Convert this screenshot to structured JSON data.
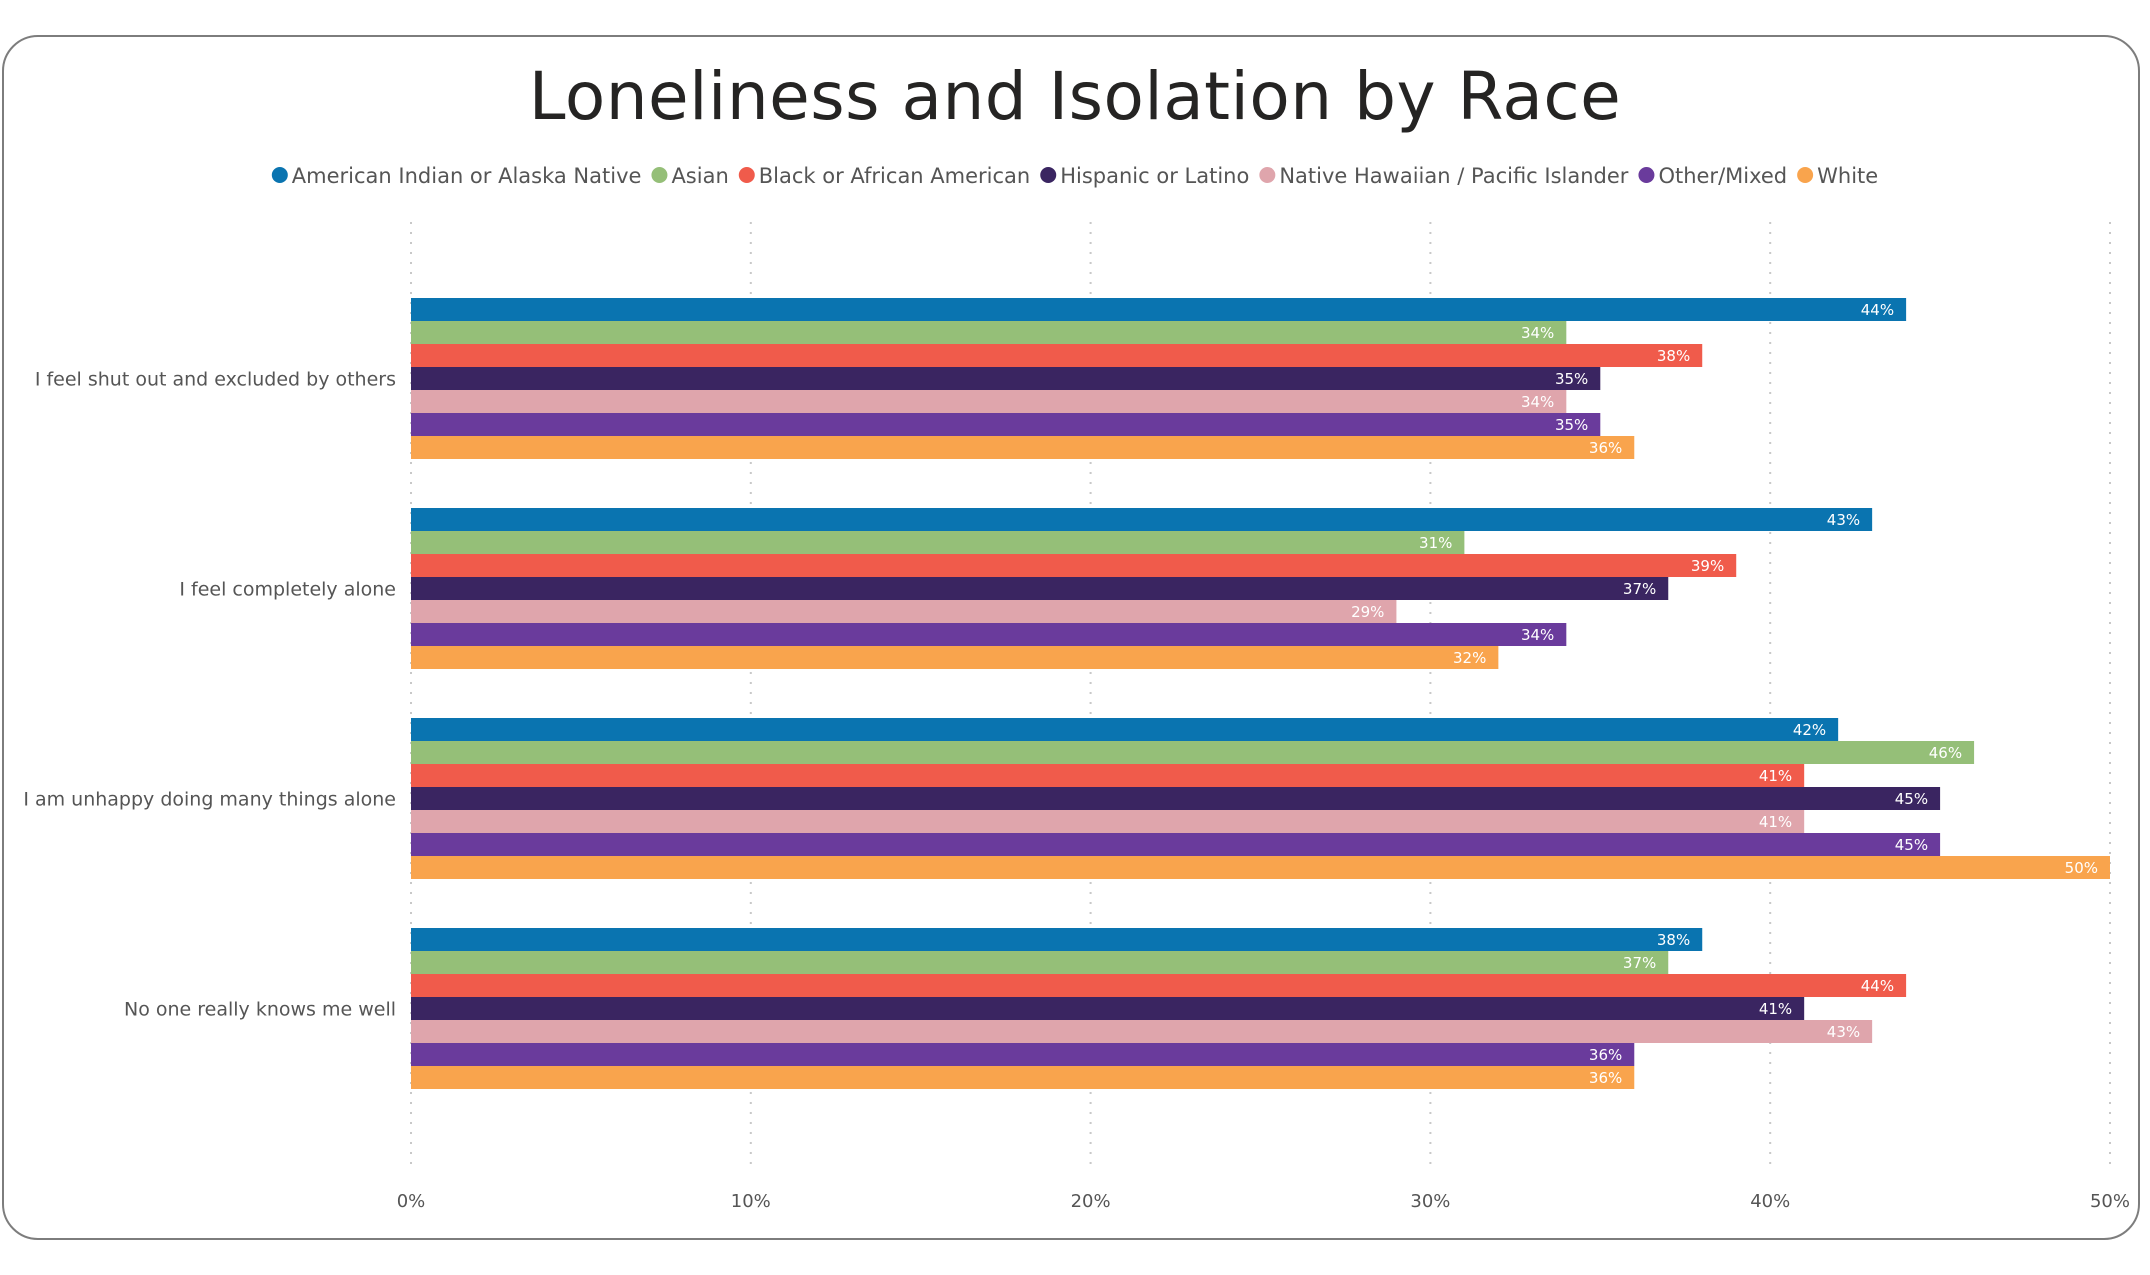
{
  "chart_data": {
    "type": "bar",
    "orientation": "horizontal",
    "title": "Loneliness and Isolation by Race",
    "categories": [
      "I feel shut out and excluded by others",
      "I feel completely alone",
      "I am unhappy doing many things alone",
      "No one really knows me well"
    ],
    "series": [
      {
        "name": "American Indian or Alaska Native",
        "color": "#0a74b0",
        "values": [
          44,
          43,
          42,
          38
        ]
      },
      {
        "name": "Asian",
        "color": "#95bf78",
        "values": [
          34,
          31,
          46,
          37
        ]
      },
      {
        "name": "Black or African American",
        "color": "#f05b4b",
        "values": [
          38,
          39,
          41,
          44
        ]
      },
      {
        "name": "Hispanic or Latino",
        "color": "#3a2561",
        "values": [
          35,
          37,
          45,
          41
        ]
      },
      {
        "name": "Native Hawaiian / Pacific Islander",
        "color": "#dfa5ac",
        "values": [
          34,
          29,
          41,
          43
        ]
      },
      {
        "name": "Other/Mixed",
        "color": "#6a3b9c",
        "values": [
          35,
          34,
          45,
          36
        ]
      },
      {
        "name": "White",
        "color": "#f9a44d",
        "values": [
          36,
          32,
          50,
          36
        ]
      }
    ],
    "x_ticks": [
      "0%",
      "10%",
      "20%",
      "30%",
      "40%",
      "50%"
    ],
    "xlim": [
      0,
      50
    ],
    "value_suffix": "%",
    "legend_position": "top-center",
    "grid": "vertical-dotted"
  }
}
